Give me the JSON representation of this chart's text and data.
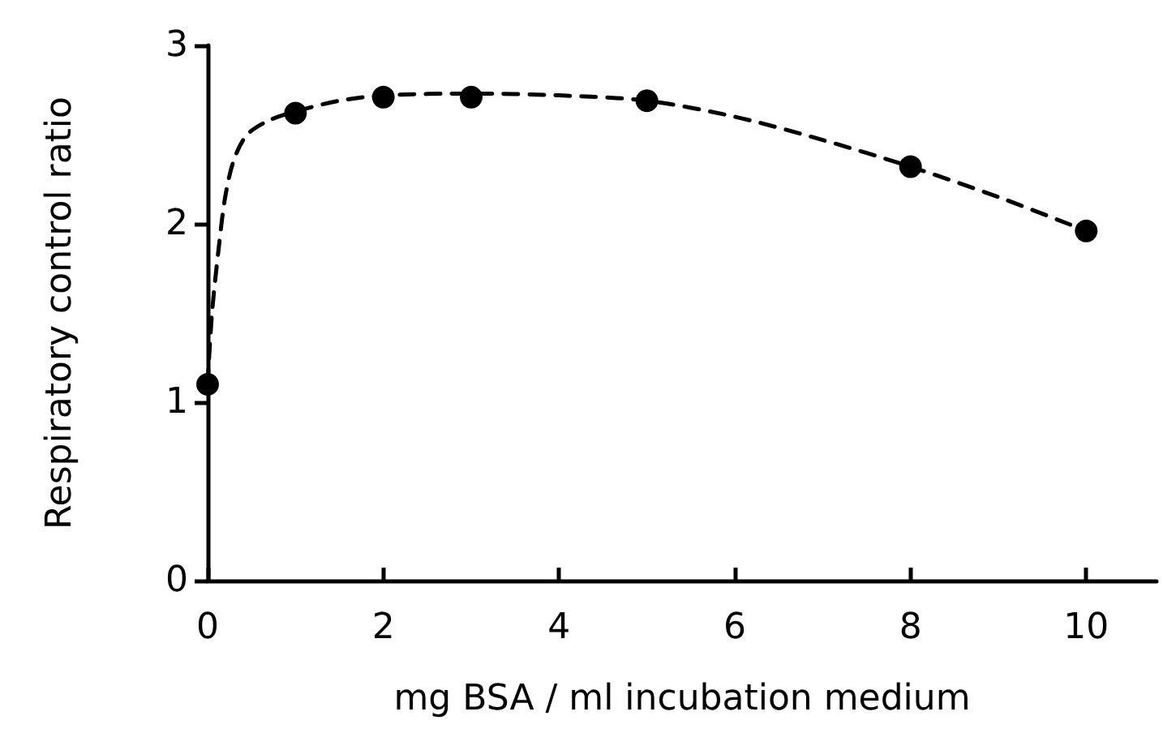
{
  "chart_data": {
    "type": "scatter",
    "xlabel": "mg BSA / ml incubation medium",
    "ylabel": "Respiratory control ratio",
    "series": [
      {
        "color": "#000000",
        "x": [
          0,
          1,
          2,
          3,
          5,
          8,
          10
        ],
        "values": [
          1.1,
          2.62,
          2.71,
          2.71,
          2.69,
          2.32,
          1.96
        ],
        "marker": "circle"
      },
      {
        "type": "line",
        "color": "#000000",
        "line_style": "dashed",
        "marker": "none",
        "x": [
          0,
          0.05,
          0.13,
          0.2,
          0.3,
          0.45,
          0.7,
          1,
          1.5,
          2,
          3,
          4,
          5,
          6,
          7,
          8,
          9,
          10
        ],
        "values": [
          1.1,
          1.5,
          1.88,
          2.15,
          2.36,
          2.5,
          2.58,
          2.63,
          2.69,
          2.72,
          2.73,
          2.72,
          2.69,
          2.6,
          2.47,
          2.32,
          2.15,
          1.96
        ]
      }
    ],
    "xlim": [
      0,
      10.8
    ],
    "xticks": [
      0,
      2,
      4,
      6,
      8,
      10
    ],
    "ylim": [
      0,
      3
    ],
    "yticks": [
      0,
      1,
      2,
      3
    ],
    "grid": false
  }
}
